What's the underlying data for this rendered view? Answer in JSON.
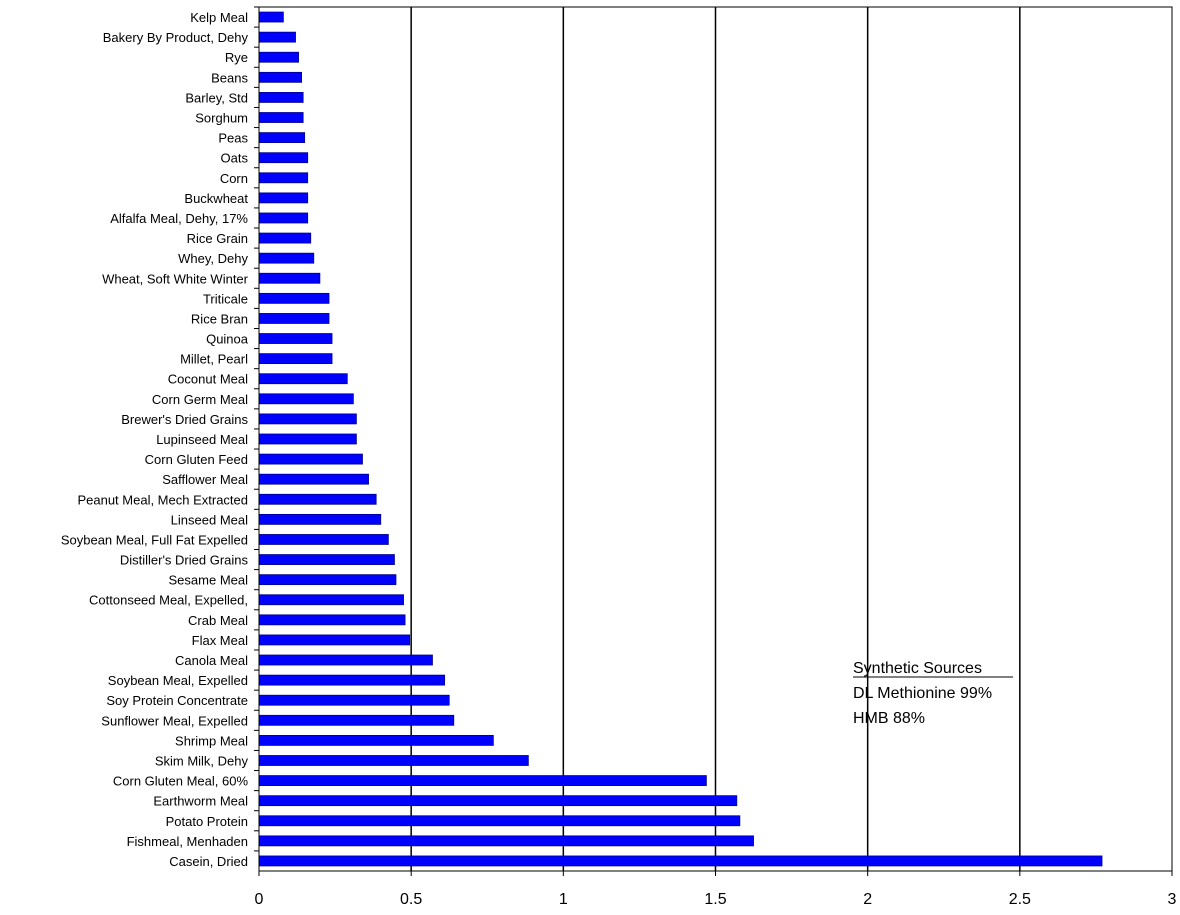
{
  "colors": {
    "bar": "#0000ff",
    "bar_stroke": "#00008b",
    "grid": "#000000",
    "axis": "#000000"
  },
  "chart_data": {
    "type": "bar",
    "orientation": "horizontal",
    "title": "",
    "xlabel": "",
    "ylabel": "",
    "xlim": [
      0,
      3
    ],
    "xticks": [
      "0",
      "0.5",
      "1",
      "1.5",
      "2",
      "2.5",
      "3"
    ],
    "grid": "vertical major gridlines",
    "categories": [
      "Kelp Meal",
      "Bakery By Product, Dehy",
      "Rye",
      "Beans",
      "Barley, Std",
      "Sorghum",
      "Peas",
      "Oats",
      "Corn",
      "Buckwheat",
      "Alfalfa Meal, Dehy, 17%",
      "Rice Grain",
      "Whey, Dehy",
      "Wheat, Soft White Winter",
      "Triticale",
      "Rice Bran",
      "Quinoa",
      "Millet, Pearl",
      "Coconut Meal",
      "Corn Germ Meal",
      "Brewer's Dried Grains",
      "Lupinseed Meal",
      "Corn Gluten Feed",
      "Safflower Meal",
      "Peanut Meal, Mech Extracted",
      "Linseed Meal",
      "Soybean Meal, Full Fat Expelled",
      "Distiller's Dried Grains",
      "Sesame Meal",
      "Cottonseed Meal, Expelled,",
      "Crab Meal",
      "Flax Meal",
      "Canola Meal",
      "Soybean Meal, Expelled",
      "Soy Protein Concentrate",
      "Sunflower Meal, Expelled",
      "Shrimp Meal",
      "Skim Milk, Dehy",
      "Corn Gluten Meal, 60%",
      "Earthworm Meal",
      "Potato Protein",
      "Fishmeal, Menhaden",
      "Casein, Dried"
    ],
    "values": [
      0.08,
      0.12,
      0.13,
      0.14,
      0.145,
      0.145,
      0.15,
      0.16,
      0.16,
      0.16,
      0.16,
      0.17,
      0.18,
      0.2,
      0.23,
      0.23,
      0.24,
      0.24,
      0.29,
      0.31,
      0.32,
      0.32,
      0.34,
      0.36,
      0.385,
      0.4,
      0.425,
      0.445,
      0.45,
      0.475,
      0.48,
      0.495,
      0.57,
      0.61,
      0.625,
      0.64,
      0.77,
      0.885,
      1.47,
      1.57,
      1.58,
      1.625,
      2.77
    ],
    "annotation": {
      "heading": "Synthetic  Sources",
      "items": [
        "DL Methionine 99%",
        "HMB 88%"
      ]
    }
  }
}
